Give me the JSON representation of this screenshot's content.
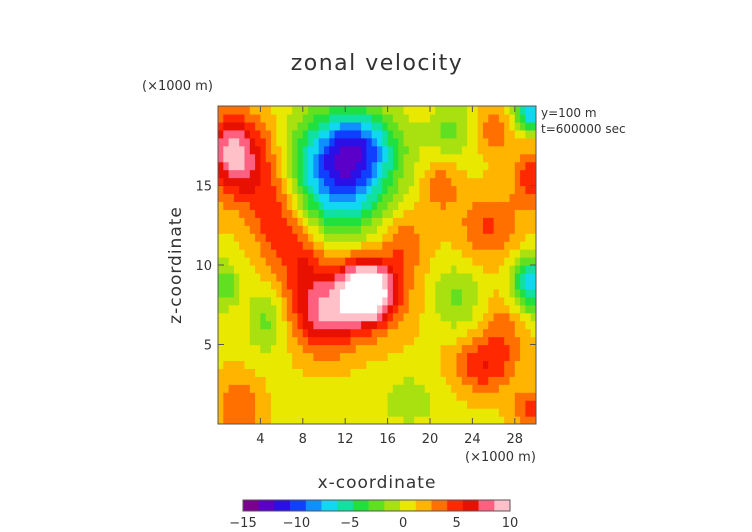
{
  "chart_data": {
    "type": "heatmap",
    "title": "zonal velocity",
    "xlabel": "x-coordinate",
    "ylabel": "z-coordinate",
    "x_scale_label": "(×1000 m)",
    "y_scale_label": "(×1000 m)",
    "annotations": [
      "y=100 m",
      "t=600000 sec"
    ],
    "xlim": [
      0,
      30
    ],
    "ylim": [
      0,
      20
    ],
    "x_ticks": [
      4,
      8,
      12,
      16,
      20,
      24,
      28
    ],
    "y_ticks": [
      5,
      10,
      15
    ],
    "colorbar": {
      "ticks": [
        -15,
        -10,
        -5,
        0,
        5,
        10
      ],
      "range": [
        -15,
        10
      ],
      "colors": [
        "#7a008f",
        "#5a00c8",
        "#2a10e6",
        "#1040ff",
        "#1090ff",
        "#10d8f0",
        "#10e0a0",
        "#20e040",
        "#60e020",
        "#a8e010",
        "#e8e800",
        "#ffb400",
        "#ff7000",
        "#ff2800",
        "#e81000",
        "#ff6080",
        "#ffc0c8"
      ]
    },
    "field_features": [
      {
        "x": 14.0,
        "z": 8.3,
        "value": 12,
        "sx": 1.6,
        "sz": 1.2
      },
      {
        "x": 13.0,
        "z": 8.3,
        "value": 5,
        "sx": 3.2,
        "sz": 2.0
      },
      {
        "x": 10.0,
        "z": 6.5,
        "value": 5,
        "sx": 1.8,
        "sz": 1.5
      },
      {
        "x": 8.0,
        "z": 10.0,
        "value": 4,
        "sx": 1.5,
        "sz": 2.2
      },
      {
        "x": 5.5,
        "z": 13.0,
        "value": 4.5,
        "sx": 1.6,
        "sz": 2.0
      },
      {
        "x": 2.5,
        "z": 16.5,
        "value": 6,
        "sx": 2.2,
        "sz": 2.0
      },
      {
        "x": 1.0,
        "z": 17.5,
        "value": 4,
        "sx": 1.4,
        "sz": 1.5
      },
      {
        "x": 11.5,
        "z": 15.8,
        "value": -11,
        "sx": 3.2,
        "sz": 2.6
      },
      {
        "x": 13.5,
        "z": 17.5,
        "value": -5,
        "sx": 2.5,
        "sz": 1.5
      },
      {
        "x": 25.5,
        "z": 12.5,
        "value": 3.5,
        "sx": 2.0,
        "sz": 1.5
      },
      {
        "x": 25.0,
        "z": 3.7,
        "value": 4.5,
        "sx": 2.0,
        "sz": 1.2
      },
      {
        "x": 29.5,
        "z": 8.8,
        "value": -8,
        "sx": 1.2,
        "sz": 1.2
      },
      {
        "x": 29.5,
        "z": 19.5,
        "value": -8,
        "sx": 1.0,
        "sz": 0.8
      },
      {
        "x": 29.5,
        "z": 15.5,
        "value": 4,
        "sx": 1.2,
        "sz": 1.4
      },
      {
        "x": 0.5,
        "z": 8.8,
        "value": -4,
        "sx": 1.0,
        "sz": 1.0
      },
      {
        "x": 4.5,
        "z": 6.5,
        "value": -3,
        "sx": 1.2,
        "sz": 1.4
      },
      {
        "x": 22.0,
        "z": 18.5,
        "value": -3,
        "sx": 1.5,
        "sz": 1.2
      },
      {
        "x": 22.5,
        "z": 8.0,
        "value": -3,
        "sx": 1.6,
        "sz": 1.4
      },
      {
        "x": 21.0,
        "z": 15.0,
        "value": 3,
        "sx": 1.2,
        "sz": 1.2
      },
      {
        "x": 26.0,
        "z": 18.5,
        "value": 3,
        "sx": 1.2,
        "sz": 1.0
      },
      {
        "x": 17.5,
        "z": 11.5,
        "value": 3,
        "sx": 1.5,
        "sz": 1.5
      },
      {
        "x": 2.0,
        "z": 1.0,
        "value": 3,
        "sx": 1.5,
        "sz": 1.5
      },
      {
        "x": 29.5,
        "z": 1.0,
        "value": 3.5,
        "sx": 1.2,
        "sz": 1.0
      },
      {
        "x": 18.0,
        "z": 1.5,
        "value": -2,
        "sx": 2.0,
        "sz": 1.2
      },
      {
        "x": 27.0,
        "z": 6.0,
        "value": 2.5,
        "sx": 1.5,
        "sz": 1.5
      }
    ]
  }
}
